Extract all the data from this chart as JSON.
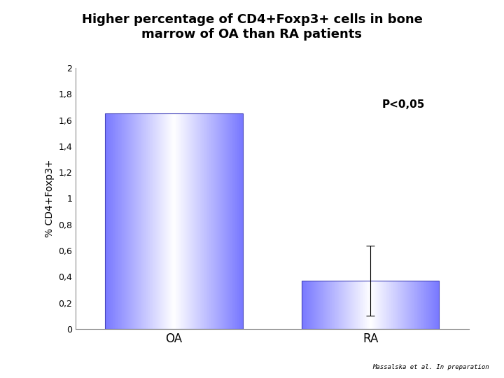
{
  "title_line1": "Higher percentage of CD4+Foxp3+ cells in bone",
  "title_line2": "marrow of OA than RA patients",
  "categories": [
    "OA",
    "RA"
  ],
  "values": [
    1.65,
    0.37
  ],
  "yerr": [
    0.0,
    0.27
  ],
  "ylabel": "% CD4+Foxp3+",
  "ylim": [
    0,
    2.0
  ],
  "yticks": [
    0,
    0.2,
    0.4,
    0.6,
    0.8,
    1.0,
    1.2,
    1.4,
    1.6,
    1.8,
    2.0
  ],
  "ytick_labels": [
    "0",
    "0,2",
    "0,4",
    "0,6",
    "0,8",
    "1",
    "1,2",
    "1,4",
    "1,6",
    "1,8",
    "2"
  ],
  "pvalue_text": "P<0,05",
  "title_red_line_color": "#cc0000",
  "background_color": "#ffffff",
  "bar_blue_r": 0.47,
  "bar_blue_g": 0.47,
  "bar_blue_b": 1.0,
  "bar_edge_color": "#4444bb",
  "bar_width": 0.35,
  "x_positions": [
    0.25,
    0.75
  ],
  "footnote": "Massalska et al. In preparation",
  "title_fontsize": 13,
  "ylabel_fontsize": 10,
  "xtick_fontsize": 12,
  "ytick_fontsize": 9,
  "pvalue_fontsize": 11
}
